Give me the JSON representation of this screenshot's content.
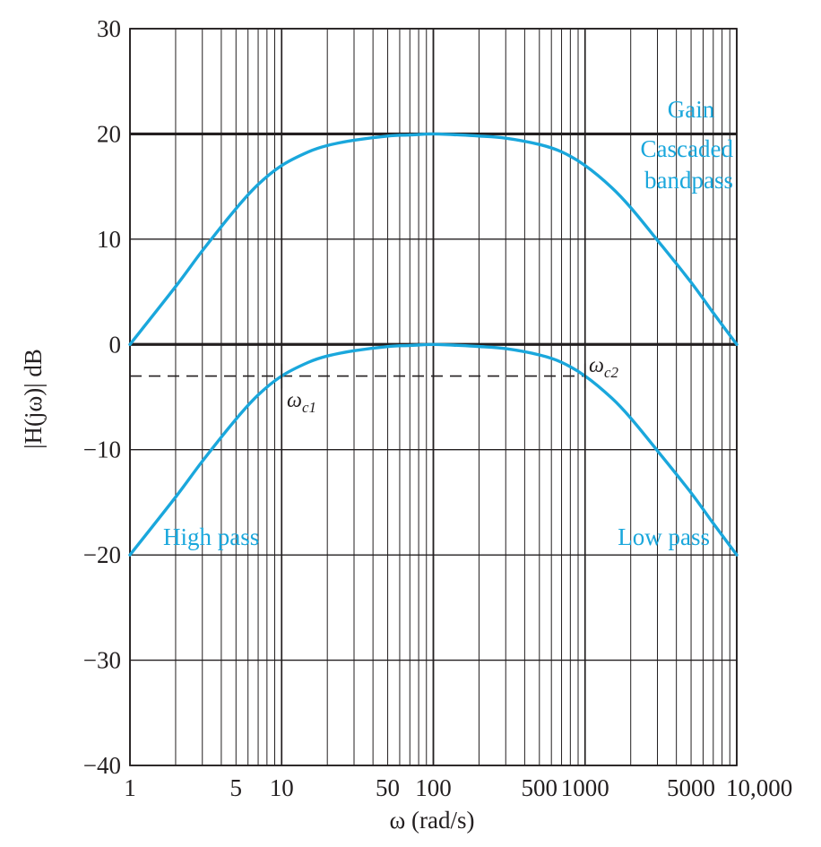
{
  "chart_data": {
    "type": "line",
    "xscale": "log",
    "xlim": [
      1,
      10000
    ],
    "ylim": [
      -40,
      30
    ],
    "x_ticks": [
      1,
      5,
      10,
      50,
      100,
      500,
      1000,
      5000,
      10000
    ],
    "x_tick_labels": [
      "1",
      "5",
      "10",
      "50",
      "100",
      "500",
      "1000",
      "5000",
      "10,000"
    ],
    "y_ticks": [
      30,
      20,
      10,
      0,
      -10,
      -20,
      -30,
      -40
    ],
    "y_tick_labels": [
      "30",
      "20",
      "10",
      "0",
      "−10",
      "−20",
      "−30",
      "−40"
    ],
    "grid": true,
    "xlabel": "ω (rad/s)",
    "ylabel": "|H(jω)| dB",
    "curve_color": "#1aa7dc",
    "reference_lines": [
      {
        "name": "gain-line",
        "y": 20
      },
      {
        "name": "zero-db-line",
        "y": 0
      },
      {
        "name": "minus-3db-line",
        "y": -3,
        "style": "dashed",
        "x_range": [
          1,
          1000
        ]
      }
    ],
    "series": [
      {
        "name": "Cascaded bandpass",
        "x": [
          1,
          2,
          3,
          5,
          7,
          10,
          15,
          20,
          30,
          50,
          70,
          100,
          150,
          200,
          300,
          500,
          700,
          1000,
          1500,
          2000,
          3000,
          5000,
          7000,
          10000
        ],
        "y": [
          0,
          5.5,
          8.9,
          12.9,
          15.2,
          17.0,
          18.3,
          18.9,
          19.4,
          19.8,
          19.9,
          20.0,
          19.9,
          19.8,
          19.6,
          19.0,
          18.3,
          17.0,
          14.9,
          13.0,
          9.9,
          5.9,
          3.0,
          0
        ]
      },
      {
        "name": "High pass / Low pass",
        "x": [
          1,
          2,
          3,
          5,
          7,
          10,
          15,
          20,
          30,
          50,
          70,
          100,
          150,
          200,
          300,
          500,
          700,
          1000,
          1500,
          2000,
          3000,
          5000,
          7000,
          10000
        ],
        "y": [
          -20,
          -14.5,
          -11.1,
          -7.1,
          -4.8,
          -3.0,
          -1.7,
          -1.1,
          -0.6,
          -0.2,
          -0.1,
          0,
          -0.1,
          -0.2,
          -0.4,
          -1.0,
          -1.7,
          -3.0,
          -5.1,
          -7.0,
          -10.1,
          -14.1,
          -17.0,
          -20
        ]
      }
    ],
    "annotations": {
      "gain": "Gain",
      "cascaded_line1": "Cascaded",
      "cascaded_line2": "bandpass",
      "high_pass": "High pass",
      "low_pass": "Low pass",
      "wc1_main": "ω",
      "wc1_sub": "c1",
      "wc2_main": "ω",
      "wc2_sub": "c2"
    },
    "cutoff_markers": [
      {
        "name": "wc1-marker",
        "x": 10,
        "y": -3
      },
      {
        "name": "wc2-marker",
        "x": 1000,
        "y": -3
      }
    ]
  }
}
